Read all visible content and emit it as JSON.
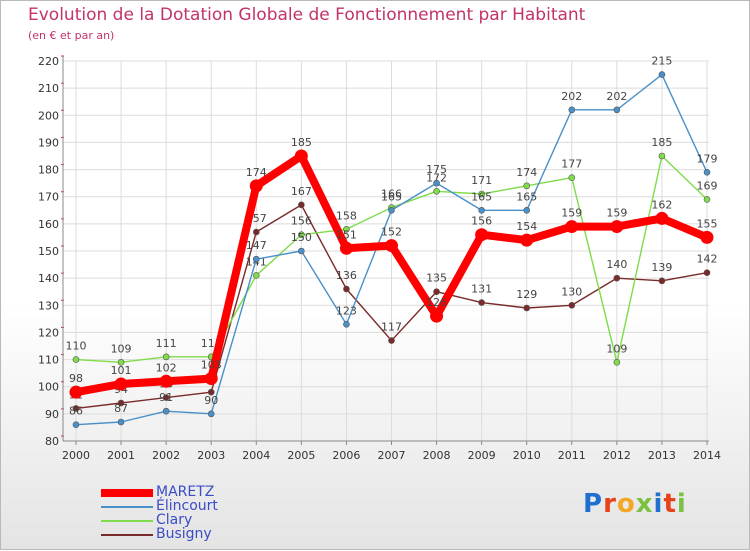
{
  "chart_data": {
    "type": "line",
    "title": "Evolution de la Dotation Globale de Fonctionnement par Habitant",
    "subtitle": "(en € et par an)",
    "categories": [
      "2000",
      "2001",
      "2002",
      "2003",
      "2004",
      "2005",
      "2006",
      "2007",
      "2008",
      "2009",
      "2010",
      "2011",
      "2012",
      "2013",
      "2014"
    ],
    "ylim": [
      80,
      220
    ],
    "yticks": [
      80,
      90,
      100,
      110,
      120,
      130,
      140,
      150,
      160,
      170,
      180,
      190,
      200,
      210,
      220
    ],
    "grid": true,
    "legend_position": "bottom-left",
    "series": [
      {
        "name": "MARETZ",
        "color": "#ff0000",
        "values": [
          98,
          101,
          102,
          103,
          174,
          185,
          151,
          152,
          126,
          156,
          154,
          159,
          159,
          162,
          155
        ],
        "labels": [
          "98",
          "101",
          "102",
          "103",
          "174",
          "185",
          "151",
          "152",
          "126",
          "156",
          "154",
          "159",
          "159",
          "162",
          "155"
        ]
      },
      {
        "name": "Élincourt",
        "color": "#4a90c8",
        "values": [
          86,
          87,
          91,
          90,
          147,
          150,
          123,
          165,
          175,
          165,
          165,
          202,
          202,
          215,
          179
        ],
        "labels": [
          "86",
          "87",
          "91",
          "90",
          "147",
          "150",
          "123",
          "165",
          "175",
          "165",
          "165",
          "202",
          "202",
          "215",
          "179"
        ]
      },
      {
        "name": "Clary",
        "color": "#7fdc4a",
        "values": [
          110,
          109,
          111,
          111,
          141,
          156,
          158,
          166,
          172,
          171,
          174,
          177,
          109,
          185,
          169
        ],
        "labels": [
          "110",
          "109",
          "111",
          "111",
          "141",
          "156",
          "158",
          "166",
          "172",
          "171",
          "174",
          "177",
          "109",
          "185",
          "169"
        ]
      },
      {
        "name": "Busigny",
        "color": "#7a2a2a",
        "values": [
          92,
          94,
          96,
          98,
          157,
          167,
          136,
          117,
          135,
          131,
          129,
          130,
          140,
          139,
          142
        ],
        "labels": [
          "92",
          "94",
          "96",
          "98",
          "157",
          "167",
          "136",
          "117",
          "135",
          "131",
          "129",
          "130",
          "140",
          "139",
          "142"
        ]
      }
    ]
  },
  "logo": {
    "letters": [
      "P",
      "r",
      "o",
      "x",
      "i",
      "t",
      "i"
    ],
    "colors": [
      "#1f6fd1",
      "#e8421c",
      "#f5a623",
      "#7cc242",
      "#1f6fd1",
      "#e8421c",
      "#7cc242"
    ]
  }
}
